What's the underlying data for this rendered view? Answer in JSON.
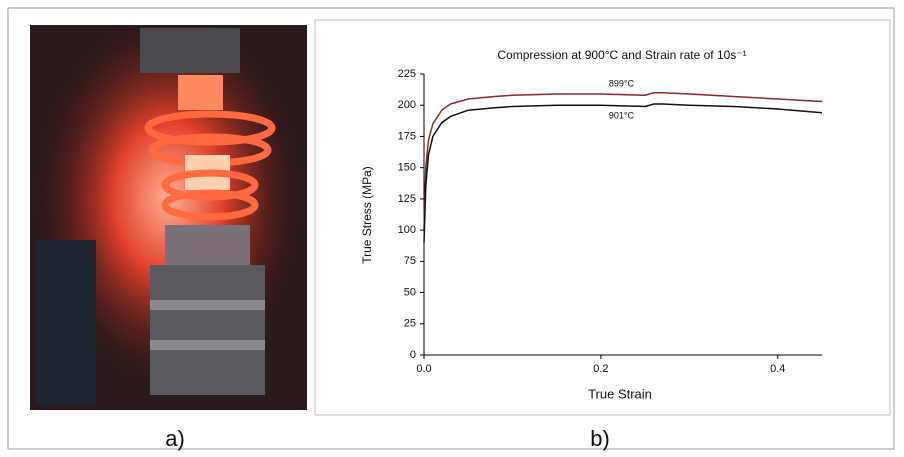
{
  "chart_data": {
    "type": "line",
    "title": "Compression at 900°C and Strain rate of 10s⁻¹",
    "x_label": "True Strain",
    "y_label": "True Stress (MPa)",
    "x": [
      0,
      0.002,
      0.005,
      0.01,
      0.02,
      0.03,
      0.05,
      0.08,
      0.1,
      0.15,
      0.2,
      0.25,
      0.26,
      0.27,
      0.3,
      0.35,
      0.4,
      0.45
    ],
    "series": [
      {
        "name": "899°C",
        "color": "#8b2a2a",
        "values": [
          100,
          150,
          172,
          185,
          196,
          201,
          205,
          207,
          208,
          209,
          209,
          208,
          210,
          210,
          209,
          207,
          205,
          203
        ]
      },
      {
        "name": "901°C",
        "color": "#111111",
        "values": [
          90,
          135,
          160,
          175,
          186,
          191,
          196,
          198,
          199,
          200,
          200,
          199,
          201,
          201,
          200,
          199,
          197,
          194
        ]
      }
    ],
    "xlim": [
      0,
      0.45
    ],
    "xticks": [
      {
        "value": 0,
        "label": "0.0"
      },
      0.2,
      0.4
    ],
    "ylim": [
      0,
      225
    ],
    "yticks": [
      0,
      25,
      50,
      75,
      100,
      125,
      150,
      175,
      200,
      225
    ]
  },
  "panel_labels": [
    "a)",
    "b)"
  ]
}
